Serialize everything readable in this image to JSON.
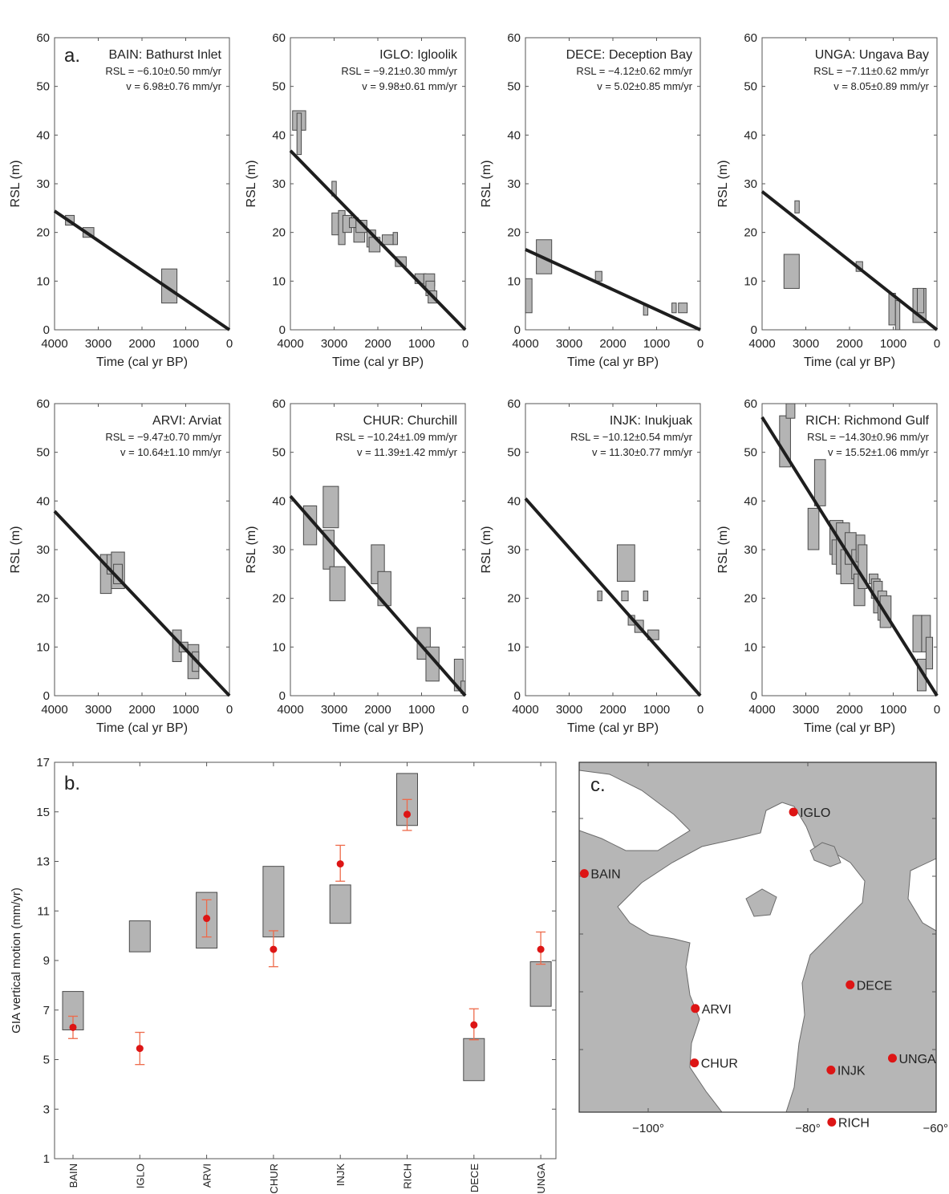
{
  "chart_data": [
    {
      "type": "scatter",
      "panel_letter": "a.",
      "title": "BAIN: Bathurst Inlet",
      "rsl_text": "RSL = −6.10±0.50 mm/yr",
      "v_text": "v = 6.98±0.76 mm/yr",
      "xlabel": "Time (cal yr BP)",
      "ylabel": "RSL (m)",
      "xlim": [
        4000,
        0
      ],
      "ylim": [
        0,
        60
      ],
      "x_ticks": [
        "4000",
        "3000",
        "2000",
        "1000",
        "0"
      ],
      "y_ticks": [
        "0",
        "10",
        "20",
        "30",
        "40",
        "50",
        "60"
      ],
      "fit_line": {
        "x": [
          4000,
          0
        ],
        "y": [
          24.4,
          0
        ]
      },
      "boxes": [
        {
          "x0": 3750,
          "x1": 3550,
          "y0": 21.5,
          "y1": 23.5
        },
        {
          "x0": 3350,
          "x1": 3100,
          "y0": 19,
          "y1": 21
        },
        {
          "x0": 1550,
          "x1": 1200,
          "y0": 5.5,
          "y1": 12.5
        }
      ]
    },
    {
      "type": "scatter",
      "panel_letter": "",
      "title": "IGLO: Igloolik",
      "rsl_text": "RSL = −9.21±0.30 mm/yr",
      "v_text": "v = 9.98±0.61 mm/yr",
      "xlabel": "Time (cal yr BP)",
      "ylabel": "RSL (m)",
      "xlim": [
        4000,
        0
      ],
      "ylim": [
        0,
        60
      ],
      "x_ticks": [
        "4000",
        "3000",
        "2000",
        "1000",
        "0"
      ],
      "y_ticks": [
        "0",
        "10",
        "20",
        "30",
        "40",
        "50",
        "60"
      ],
      "fit_line": {
        "x": [
          4000,
          0
        ],
        "y": [
          36.8,
          0
        ]
      },
      "boxes": [
        {
          "x0": 3950,
          "x1": 3650,
          "y0": 41,
          "y1": 45
        },
        {
          "x0": 3850,
          "x1": 3750,
          "y0": 36,
          "y1": 44.5
        },
        {
          "x0": 3050,
          "x1": 2950,
          "y0": 27.5,
          "y1": 30.5
        },
        {
          "x0": 3050,
          "x1": 2900,
          "y0": 19.5,
          "y1": 24
        },
        {
          "x0": 2900,
          "x1": 2750,
          "y0": 17.5,
          "y1": 24.5
        },
        {
          "x0": 2800,
          "x1": 2600,
          "y0": 20,
          "y1": 23.5
        },
        {
          "x0": 2650,
          "x1": 2450,
          "y0": 21,
          "y1": 23
        },
        {
          "x0": 2550,
          "x1": 2300,
          "y0": 18,
          "y1": 21
        },
        {
          "x0": 2500,
          "x1": 2250,
          "y0": 20,
          "y1": 22.5
        },
        {
          "x0": 2250,
          "x1": 2050,
          "y0": 17,
          "y1": 20.5
        },
        {
          "x0": 2200,
          "x1": 1950,
          "y0": 16,
          "y1": 19
        },
        {
          "x0": 1900,
          "x1": 1650,
          "y0": 17.5,
          "y1": 19.5
        },
        {
          "x0": 1650,
          "x1": 1550,
          "y0": 17.5,
          "y1": 20
        },
        {
          "x0": 1600,
          "x1": 1350,
          "y0": 13,
          "y1": 15
        },
        {
          "x0": 1150,
          "x1": 900,
          "y0": 9.5,
          "y1": 11.5
        },
        {
          "x0": 950,
          "x1": 700,
          "y0": 9,
          "y1": 11.5
        },
        {
          "x0": 900,
          "x1": 700,
          "y0": 7,
          "y1": 10
        },
        {
          "x0": 850,
          "x1": 650,
          "y0": 5.5,
          "y1": 8
        }
      ]
    },
    {
      "type": "scatter",
      "panel_letter": "",
      "title": "DECE: Deception Bay",
      "rsl_text": "RSL = −4.12±0.62 mm/yr",
      "v_text": "v = 5.02±0.85 mm/yr",
      "xlabel": "Time (cal yr BP)",
      "ylabel": "RSL (m)",
      "xlim": [
        4000,
        0
      ],
      "ylim": [
        0,
        60
      ],
      "x_ticks": [
        "4000",
        "3000",
        "2000",
        "1000",
        "0"
      ],
      "y_ticks": [
        "0",
        "10",
        "20",
        "30",
        "40",
        "50",
        "60"
      ],
      "fit_line": {
        "x": [
          4000,
          0
        ],
        "y": [
          16.5,
          0
        ]
      },
      "boxes": [
        {
          "x0": 4000,
          "x1": 3850,
          "y0": 3.5,
          "y1": 10.5
        },
        {
          "x0": 3750,
          "x1": 3400,
          "y0": 11.5,
          "y1": 18.5
        },
        {
          "x0": 2400,
          "x1": 2250,
          "y0": 10,
          "y1": 12
        },
        {
          "x0": 1300,
          "x1": 1200,
          "y0": 3,
          "y1": 5
        },
        {
          "x0": 650,
          "x1": 550,
          "y0": 3.5,
          "y1": 5.5
        },
        {
          "x0": 500,
          "x1": 300,
          "y0": 3.5,
          "y1": 5.5
        }
      ]
    },
    {
      "type": "scatter",
      "panel_letter": "",
      "title": "UNGA: Ungava Bay",
      "rsl_text": "RSL = −7.11±0.62 mm/yr",
      "v_text": "v = 8.05±0.89 mm/yr",
      "xlabel": "Time (cal yr BP)",
      "ylabel": "RSL (m)",
      "xlim": [
        4000,
        0
      ],
      "ylim": [
        0,
        60
      ],
      "x_ticks": [
        "4000",
        "3000",
        "2000",
        "1000",
        "0"
      ],
      "y_ticks": [
        "0",
        "10",
        "20",
        "30",
        "40",
        "50",
        "60"
      ],
      "fit_line": {
        "x": [
          4000,
          0
        ],
        "y": [
          28.4,
          0
        ]
      },
      "boxes": [
        {
          "x0": 3500,
          "x1": 3150,
          "y0": 8.5,
          "y1": 15.5
        },
        {
          "x0": 3250,
          "x1": 3150,
          "y0": 24,
          "y1": 26.5
        },
        {
          "x0": 1850,
          "x1": 1700,
          "y0": 12,
          "y1": 14
        },
        {
          "x0": 1100,
          "x1": 950,
          "y0": 1,
          "y1": 7.5
        },
        {
          "x0": 950,
          "x1": 850,
          "y0": 0,
          "y1": 6
        },
        {
          "x0": 550,
          "x1": 250,
          "y0": 1.5,
          "y1": 8.5
        },
        {
          "x0": 450,
          "x1": 300,
          "y0": 3.5,
          "y1": 8.5
        }
      ]
    },
    {
      "type": "scatter",
      "panel_letter": "",
      "title": "ARVI: Arviat",
      "rsl_text": "RSL = −9.47±0.70 mm/yr",
      "v_text": "v = 10.64±1.10 mm/yr",
      "xlabel": "Time (cal yr BP)",
      "ylabel": "RSL (m)",
      "xlim": [
        4000,
        0
      ],
      "ylim": [
        0,
        60
      ],
      "x_ticks": [
        "4000",
        "3000",
        "2000",
        "1000",
        "0"
      ],
      "y_ticks": [
        "0",
        "10",
        "20",
        "30",
        "40",
        "50",
        "60"
      ],
      "fit_line": {
        "x": [
          4000,
          0
        ],
        "y": [
          37.9,
          0
        ]
      },
      "boxes": [
        {
          "x0": 2950,
          "x1": 2700,
          "y0": 21,
          "y1": 29
        },
        {
          "x0": 2800,
          "x1": 2550,
          "y0": 25,
          "y1": 29
        },
        {
          "x0": 2700,
          "x1": 2400,
          "y0": 22,
          "y1": 29.5
        },
        {
          "x0": 2650,
          "x1": 2450,
          "y0": 23,
          "y1": 27
        },
        {
          "x0": 1300,
          "x1": 1100,
          "y0": 7,
          "y1": 13.5
        },
        {
          "x0": 1150,
          "x1": 950,
          "y0": 9,
          "y1": 11
        },
        {
          "x0": 950,
          "x1": 700,
          "y0": 3.5,
          "y1": 10.5
        },
        {
          "x0": 850,
          "x1": 700,
          "y0": 5,
          "y1": 9
        }
      ]
    },
    {
      "type": "scatter",
      "panel_letter": "",
      "title": "CHUR: Churchill",
      "rsl_text": "RSL = −10.24±1.09 mm/yr",
      "v_text": "v = 11.39±1.42 mm/yr",
      "xlabel": "Time (cal yr BP)",
      "ylabel": "RSL (m)",
      "xlim": [
        4000,
        0
      ],
      "ylim": [
        0,
        60
      ],
      "x_ticks": [
        "4000",
        "3000",
        "2000",
        "1000",
        "0"
      ],
      "y_ticks": [
        "0",
        "10",
        "20",
        "30",
        "40",
        "50",
        "60"
      ],
      "fit_line": {
        "x": [
          4000,
          0
        ],
        "y": [
          41,
          0
        ]
      },
      "boxes": [
        {
          "x0": 3700,
          "x1": 3400,
          "y0": 31,
          "y1": 39
        },
        {
          "x0": 3250,
          "x1": 2900,
          "y0": 34.5,
          "y1": 43
        },
        {
          "x0": 3250,
          "x1": 3000,
          "y0": 26,
          "y1": 34
        },
        {
          "x0": 3100,
          "x1": 2750,
          "y0": 19.5,
          "y1": 26.5
        },
        {
          "x0": 2150,
          "x1": 1850,
          "y0": 23,
          "y1": 31
        },
        {
          "x0": 2000,
          "x1": 1700,
          "y0": 18.5,
          "y1": 25.5
        },
        {
          "x0": 1100,
          "x1": 800,
          "y0": 7.5,
          "y1": 14
        },
        {
          "x0": 900,
          "x1": 600,
          "y0": 3,
          "y1": 10
        },
        {
          "x0": 250,
          "x1": 50,
          "y0": 1,
          "y1": 7.5
        },
        {
          "x0": 100,
          "x1": 0,
          "y0": 0.5,
          "y1": 3
        }
      ]
    },
    {
      "type": "scatter",
      "panel_letter": "",
      "title": "INJK: Inukjuak",
      "rsl_text": "RSL = −10.12±0.54 mm/yr",
      "v_text": "v = 11.30±0.77 mm/yr",
      "xlabel": "Time (cal yr BP)",
      "ylabel": "RSL (m)",
      "xlim": [
        4000,
        0
      ],
      "ylim": [
        0,
        60
      ],
      "x_ticks": [
        "4000",
        "3000",
        "2000",
        "1000",
        "0"
      ],
      "y_ticks": [
        "0",
        "10",
        "20",
        "30",
        "40",
        "50",
        "60"
      ],
      "fit_line": {
        "x": [
          4000,
          0
        ],
        "y": [
          40.5,
          0
        ]
      },
      "boxes": [
        {
          "x0": 2350,
          "x1": 2250,
          "y0": 19.5,
          "y1": 21.5
        },
        {
          "x0": 1900,
          "x1": 1500,
          "y0": 23.5,
          "y1": 31
        },
        {
          "x0": 1800,
          "x1": 1650,
          "y0": 19.5,
          "y1": 21.5
        },
        {
          "x0": 1650,
          "x1": 1500,
          "y0": 14.5,
          "y1": 16.5
        },
        {
          "x0": 1500,
          "x1": 1300,
          "y0": 13,
          "y1": 15.5
        },
        {
          "x0": 1300,
          "x1": 1200,
          "y0": 19.5,
          "y1": 21.5
        },
        {
          "x0": 1200,
          "x1": 950,
          "y0": 11.5,
          "y1": 13.5
        }
      ]
    },
    {
      "type": "scatter",
      "panel_letter": "",
      "title": "RICH: Richmond Gulf",
      "rsl_text": "RSL = −14.30±0.96 mm/yr",
      "v_text": "v = 15.52±1.06 mm/yr",
      "xlabel": "Time (cal yr BP)",
      "ylabel": "RSL (m)",
      "xlim": [
        4000,
        0
      ],
      "ylim": [
        0,
        60
      ],
      "x_ticks": [
        "4000",
        "3000",
        "2000",
        "1000",
        "0"
      ],
      "y_ticks": [
        "0",
        "10",
        "20",
        "30",
        "40",
        "50",
        "60"
      ],
      "fit_line": {
        "x": [
          4000,
          0
        ],
        "y": [
          57.2,
          0
        ]
      },
      "boxes": [
        {
          "x0": 3600,
          "x1": 3350,
          "y0": 47,
          "y1": 57.5
        },
        {
          "x0": 3450,
          "x1": 3250,
          "y0": 57,
          "y1": 61
        },
        {
          "x0": 2950,
          "x1": 2700,
          "y0": 30,
          "y1": 38.5
        },
        {
          "x0": 2800,
          "x1": 2550,
          "y0": 39,
          "y1": 48.5
        },
        {
          "x0": 2450,
          "x1": 2150,
          "y0": 29,
          "y1": 36
        },
        {
          "x0": 2400,
          "x1": 2100,
          "y0": 27,
          "y1": 32
        },
        {
          "x0": 2300,
          "x1": 2000,
          "y0": 25,
          "y1": 35.5
        },
        {
          "x0": 2200,
          "x1": 1900,
          "y0": 23,
          "y1": 30
        },
        {
          "x0": 2100,
          "x1": 1850,
          "y0": 27,
          "y1": 33.5
        },
        {
          "x0": 1950,
          "x1": 1700,
          "y0": 24,
          "y1": 30
        },
        {
          "x0": 1900,
          "x1": 1650,
          "y0": 18.5,
          "y1": 25
        },
        {
          "x0": 1850,
          "x1": 1650,
          "y0": 27.5,
          "y1": 33
        },
        {
          "x0": 1800,
          "x1": 1600,
          "y0": 22,
          "y1": 31
        },
        {
          "x0": 1550,
          "x1": 1350,
          "y0": 23,
          "y1": 25
        },
        {
          "x0": 1500,
          "x1": 1300,
          "y0": 20,
          "y1": 24
        },
        {
          "x0": 1450,
          "x1": 1250,
          "y0": 17,
          "y1": 23.5
        },
        {
          "x0": 1350,
          "x1": 1150,
          "y0": 15.5,
          "y1": 21.5
        },
        {
          "x0": 1300,
          "x1": 1050,
          "y0": 14,
          "y1": 20.5
        },
        {
          "x0": 550,
          "x1": 350,
          "y0": 9,
          "y1": 16.5
        },
        {
          "x0": 450,
          "x1": 250,
          "y0": 1,
          "y1": 7.5
        },
        {
          "x0": 350,
          "x1": 150,
          "y0": 9,
          "y1": 16.5
        },
        {
          "x0": 250,
          "x1": 100,
          "y0": 5.5,
          "y1": 12
        }
      ]
    },
    {
      "type": "bar",
      "panel_letter": "b.",
      "ylabel": "GIA vertical motion (mm/yr)",
      "ylim": [
        1,
        17
      ],
      "y_ticks": [
        "1",
        "3",
        "5",
        "7",
        "9",
        "11",
        "13",
        "15",
        "17"
      ],
      "categories": [
        "BAIN",
        "IGLO",
        "ARVI",
        "CHUR",
        "INJK",
        "RICH",
        "DECE",
        "UNGA"
      ],
      "range_boxes": [
        {
          "low": 6.2,
          "high": 7.75
        },
        {
          "low": 9.35,
          "high": 10.6
        },
        {
          "low": 9.5,
          "high": 11.75
        },
        {
          "low": 9.95,
          "high": 12.8
        },
        {
          "low": 10.5,
          "high": 12.05
        },
        {
          "low": 14.45,
          "high": 16.55
        },
        {
          "low": 4.15,
          "high": 5.85
        },
        {
          "low": 7.15,
          "high": 8.95
        }
      ],
      "points": [
        {
          "value": 6.3,
          "err_low": 5.85,
          "err_high": 6.75
        },
        {
          "value": 5.45,
          "err_low": 4.8,
          "err_high": 6.1
        },
        {
          "value": 10.7,
          "err_low": 9.95,
          "err_high": 11.45
        },
        {
          "value": 9.45,
          "err_low": 8.75,
          "err_high": 10.2
        },
        {
          "value": 12.9,
          "err_low": 12.2,
          "err_high": 13.65
        },
        {
          "value": 14.9,
          "err_low": 14.25,
          "err_high": 15.5
        },
        {
          "value": 6.4,
          "err_low": 5.8,
          "err_high": 7.05
        },
        {
          "value": 9.45,
          "err_low": 8.85,
          "err_high": 10.15
        }
      ]
    }
  ],
  "map": {
    "panel_letter": "c.",
    "lon_ticks": [
      "−100°",
      "−80°",
      "−60°"
    ],
    "lon_values": [
      -100,
      -80,
      -60
    ],
    "sites": [
      {
        "name": "IGLO",
        "lon": -81.8,
        "lat": 69.4
      },
      {
        "name": "BAIN",
        "lon": -108.0,
        "lat": 66.8
      },
      {
        "name": "ARVI",
        "lon": -94.1,
        "lat": 61.1
      },
      {
        "name": "CHUR",
        "lon": -94.2,
        "lat": 58.8
      },
      {
        "name": "DECE",
        "lon": -74.7,
        "lat": 62.1
      },
      {
        "name": "UNGA",
        "lon": -69.4,
        "lat": 59.0
      },
      {
        "name": "INJK",
        "lon": -77.1,
        "lat": 58.5
      },
      {
        "name": "RICH",
        "lon": -77.0,
        "lat": 56.3
      }
    ]
  }
}
